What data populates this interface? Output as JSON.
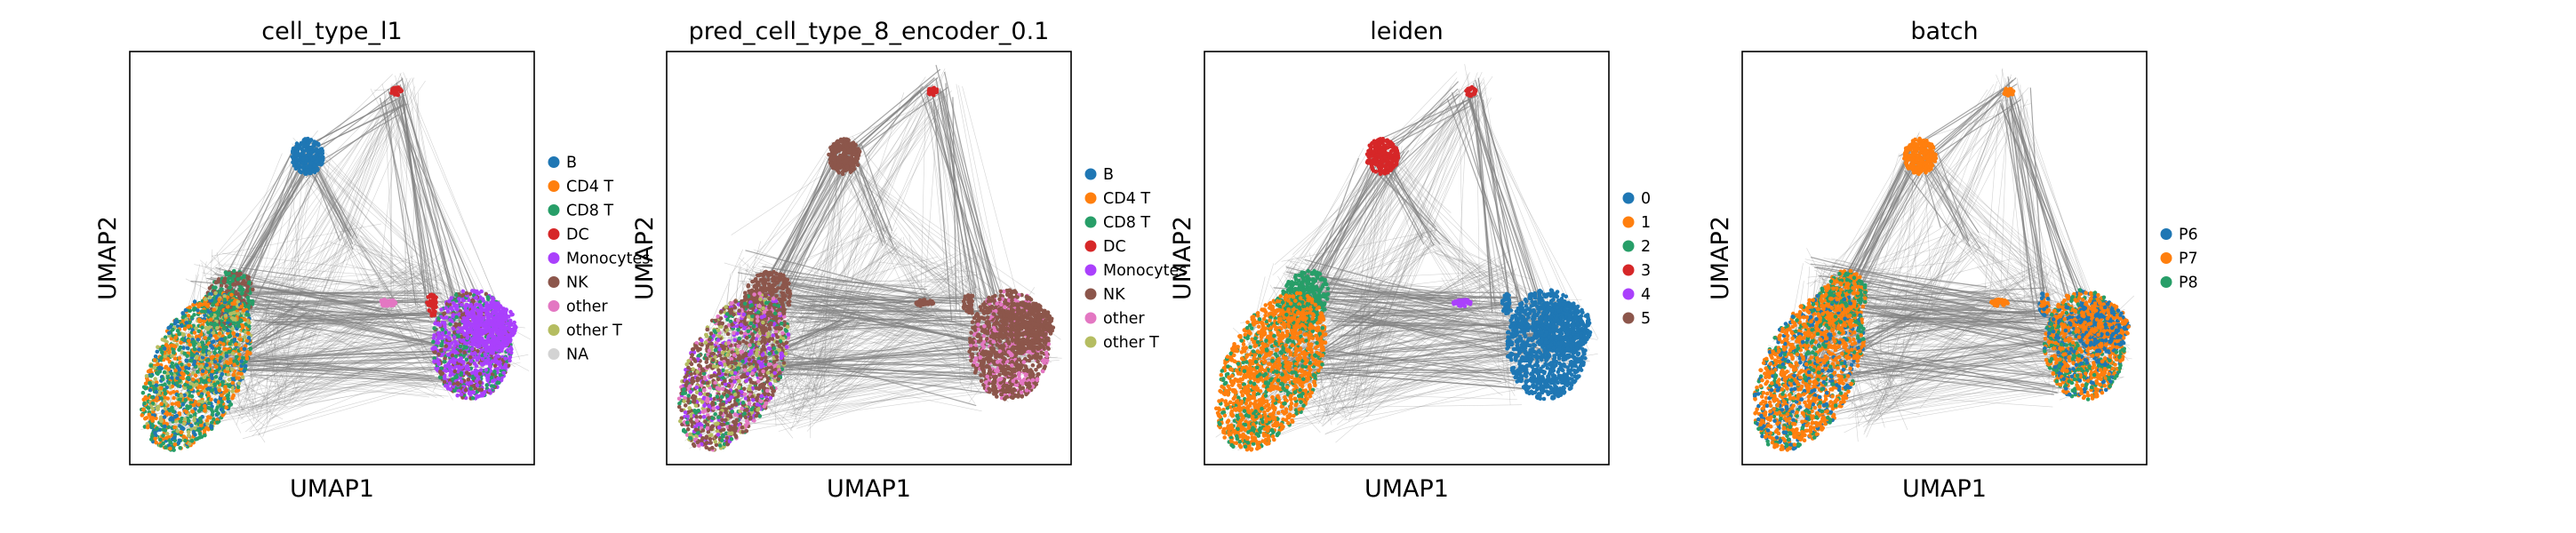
{
  "chart_data": [
    {
      "type": "scatter",
      "title": "cell_type_l1",
      "xlabel": "UMAP1",
      "ylabel": "UMAP2",
      "grid": false,
      "legend_position": "right",
      "legend": [
        {
          "label": "B",
          "color": "#1f77b4"
        },
        {
          "label": "CD4 T",
          "color": "#ff7f0e"
        },
        {
          "label": "CD8 T",
          "color": "#279e68"
        },
        {
          "label": "DC",
          "color": "#d62728"
        },
        {
          "label": "Monocytes",
          "color": "#aa40fc"
        },
        {
          "label": "NK",
          "color": "#8c564b"
        },
        {
          "label": "other",
          "color": "#e377c2"
        },
        {
          "label": "other T",
          "color": "#b5bd61"
        },
        {
          "label": "NA",
          "color": "#d3d3d3"
        }
      ]
    },
    {
      "type": "scatter",
      "title": "pred_cell_type_8_encoder_0.1",
      "xlabel": "UMAP1",
      "ylabel": "UMAP2",
      "grid": false,
      "legend_position": "right",
      "legend": [
        {
          "label": "B",
          "color": "#1f77b4"
        },
        {
          "label": "CD4 T",
          "color": "#ff7f0e"
        },
        {
          "label": "CD8 T",
          "color": "#279e68"
        },
        {
          "label": "DC",
          "color": "#d62728"
        },
        {
          "label": "Monocytes",
          "color": "#aa40fc"
        },
        {
          "label": "NK",
          "color": "#8c564b"
        },
        {
          "label": "other",
          "color": "#e377c2"
        },
        {
          "label": "other T",
          "color": "#b5bd61"
        }
      ]
    },
    {
      "type": "scatter",
      "title": "leiden",
      "xlabel": "UMAP1",
      "ylabel": "UMAP2",
      "grid": false,
      "legend_position": "right",
      "legend": [
        {
          "label": "0",
          "color": "#1f77b4"
        },
        {
          "label": "1",
          "color": "#ff7f0e"
        },
        {
          "label": "2",
          "color": "#279e68"
        },
        {
          "label": "3",
          "color": "#d62728"
        },
        {
          "label": "4",
          "color": "#aa40fc"
        },
        {
          "label": "5",
          "color": "#8c564b"
        }
      ]
    },
    {
      "type": "scatter",
      "title": "batch",
      "xlabel": "UMAP1",
      "ylabel": "UMAP2",
      "grid": false,
      "legend_position": "right",
      "legend": [
        {
          "label": "P6",
          "color": "#1f77b4"
        },
        {
          "label": "P7",
          "color": "#ff7f0e"
        },
        {
          "label": "P8",
          "color": "#279e68"
        }
      ]
    }
  ],
  "colors": {
    "edges": "#808080",
    "frame": "#000000",
    "background": "#ffffff"
  }
}
